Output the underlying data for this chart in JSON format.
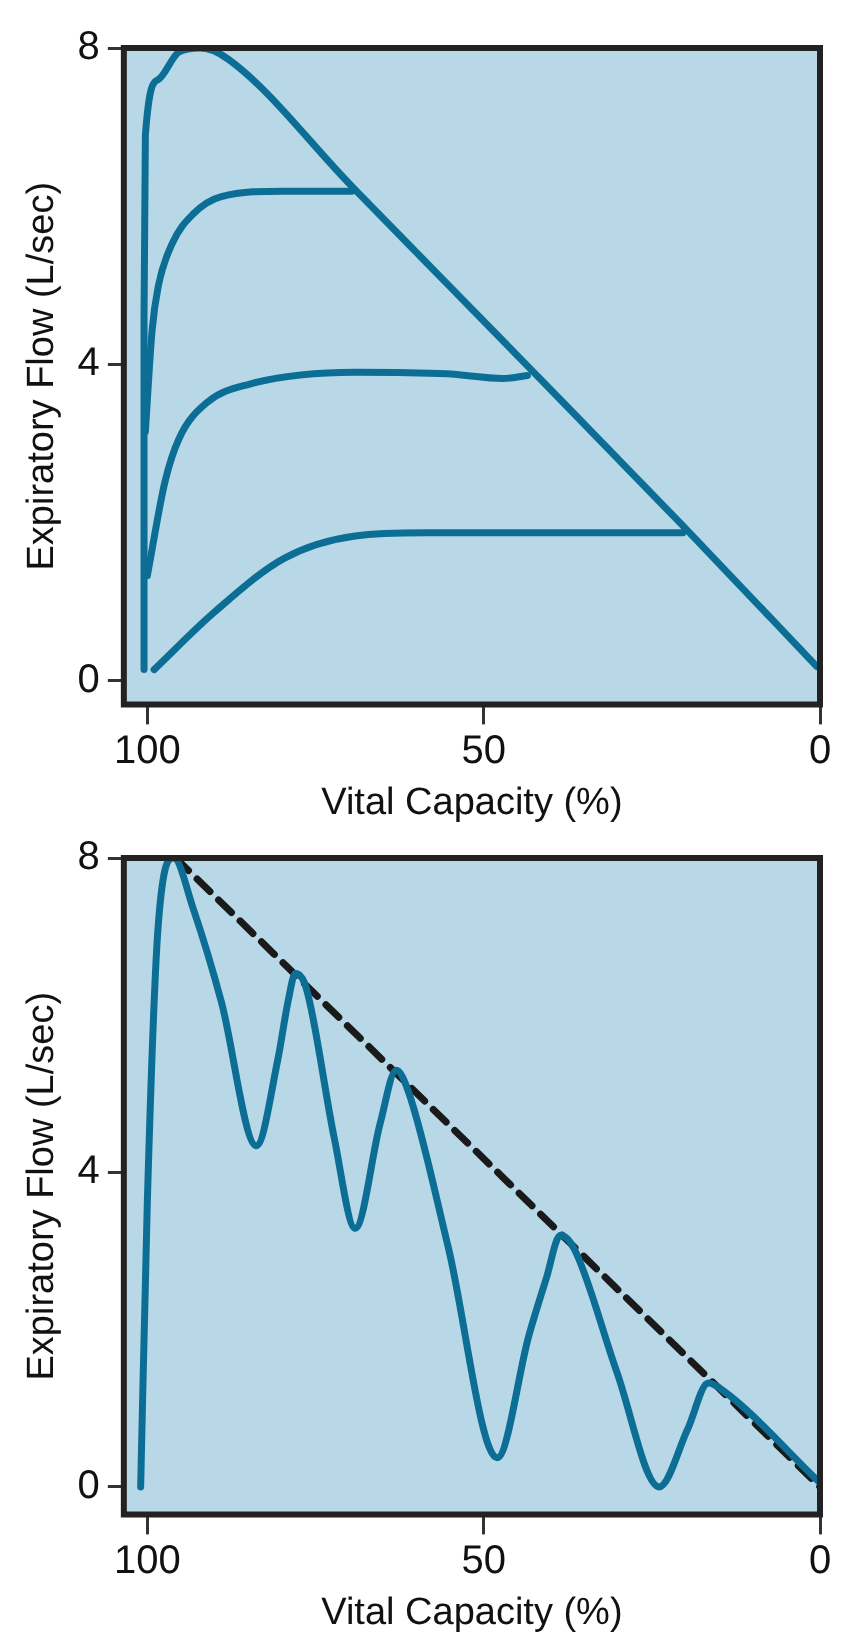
{
  "chart_data": [
    {
      "type": "line",
      "xlabel": "Vital Capacity (%)",
      "ylabel": "Expiratory Flow (L/sec)",
      "xlim": [
        103.5,
        0
      ],
      "xticks": [
        100,
        50,
        0
      ],
      "ylim": [
        -0.3,
        8
      ],
      "yticks": [
        0,
        4,
        8
      ],
      "legend": false,
      "marker": "none",
      "series": [
        {
          "color": "#0d6e95",
          "x": [
            100.5,
            100.5,
            100.3,
            98.4,
            95.3,
            92.1,
            88,
            69.6,
            43.5,
            20.4,
            0.5
          ],
          "values": [
            0.14,
            4.6,
            6.9,
            7.6,
            7.95,
            8.0,
            7.86,
            6.25,
            3.98,
            1.96,
            0.18
          ]
        },
        {
          "color": "#0d6e95",
          "x": [
            100.3,
            99.3,
            98.4,
            96.3,
            93.2,
            89,
            79.6,
            69.6
          ],
          "values": [
            3.15,
            4.43,
            4.98,
            5.53,
            5.9,
            6.12,
            6.19,
            6.19
          ]
        },
        {
          "color": "#0d6e95",
          "x": [
            100,
            97.4,
            95.3,
            91.1,
            84.8,
            69.1,
            55.5,
            47.1,
            43.5
          ],
          "values": [
            1.33,
            2.51,
            3.06,
            3.52,
            3.75,
            3.9,
            3.88,
            3.82,
            3.86
          ]
        },
        {
          "color": "#0d6e95",
          "x": [
            99,
            90,
            79.6,
            69.1,
            58.6,
            20.4
          ],
          "values": [
            0.14,
            0.87,
            1.55,
            1.83,
            1.87,
            1.87
          ]
        }
      ]
    },
    {
      "type": "line",
      "xlabel": "Vital Capacity (%)",
      "ylabel": "Expiratory Flow (L/sec)",
      "xlim": [
        103.5,
        0
      ],
      "xticks": [
        100,
        50,
        0
      ],
      "ylim": [
        -0.35,
        8
      ],
      "yticks": [
        0,
        4,
        8
      ],
      "legend": false,
      "marker": "none",
      "series": [
        {
          "color": "#0d6e95",
          "x": [
            101,
            100,
            98.4,
            96.1,
            93.2,
            89,
            83.8,
            80.6,
            79.1,
            78,
            76.4,
            72.2,
            69.1,
            65.4,
            63,
            61.2,
            55.3,
            48,
            43.3,
            40.7,
            38.6,
            36.5,
            30.2,
            23.9,
            19.7,
            16.6,
            14.5,
            0
          ],
          "values": [
            0,
            3.65,
            7.13,
            8.0,
            7.36,
            6.17,
            4.34,
            5.44,
            6.17,
            6.53,
            6.35,
            4.43,
            3.29,
            4.62,
            5.3,
            5.03,
            3.06,
            0.37,
            1.92,
            2.65,
            3.2,
            3.02,
            1.46,
            0,
            0.73,
            1.32,
            1.23,
            0.05
          ]
        },
        {
          "color": "#1a1a1a",
          "line_style": "dashed",
          "x": [
            95.8,
            0
          ],
          "values": [
            8.0,
            0
          ]
        }
      ]
    }
  ]
}
